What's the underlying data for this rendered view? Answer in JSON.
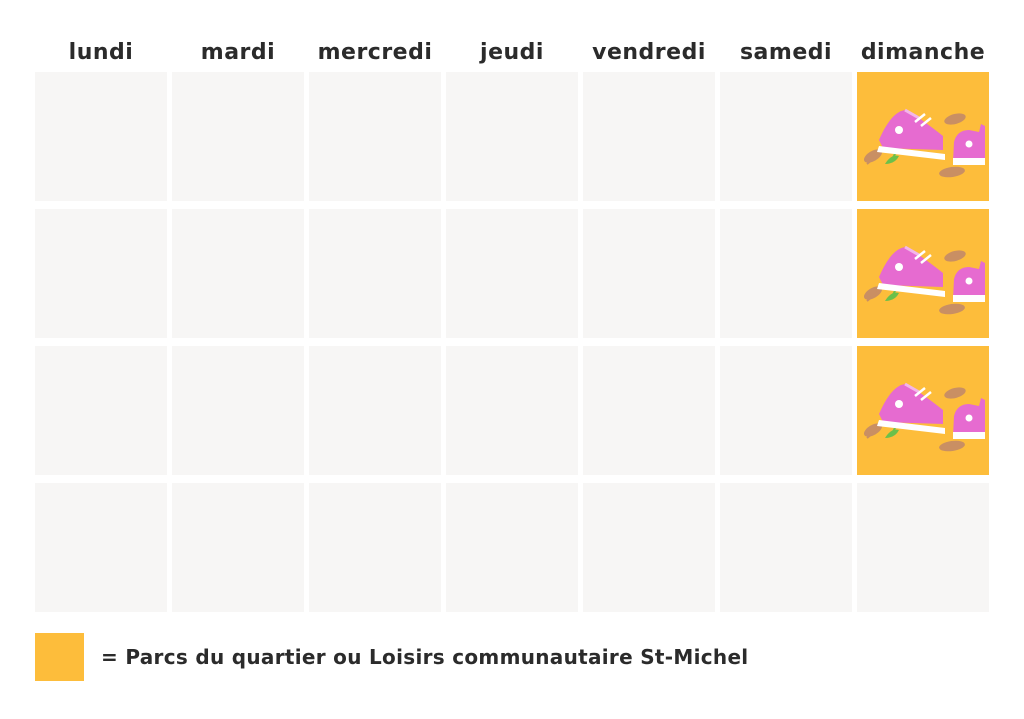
{
  "colors": {
    "activity": "#fdbd3b",
    "empty_cell": "#f7f6f5",
    "text": "#2b2b2b",
    "shoe": "#e66bd0"
  },
  "days": [
    "lundi",
    "mardi",
    "mercredi",
    "jeudi",
    "vendredi",
    "samedi",
    "dimanche"
  ],
  "weeks": [
    [
      null,
      null,
      null,
      null,
      null,
      null,
      {
        "activity": true,
        "icon": "sneakers-icon"
      }
    ],
    [
      null,
      null,
      null,
      null,
      null,
      null,
      {
        "activity": true,
        "icon": "sneakers-icon"
      }
    ],
    [
      null,
      null,
      null,
      null,
      null,
      null,
      {
        "activity": true,
        "icon": "sneakers-icon"
      }
    ],
    [
      null,
      null,
      null,
      null,
      null,
      null,
      null
    ]
  ],
  "legend": {
    "text": "= Parcs du quartier ou Loisirs communautaire St-Michel"
  }
}
